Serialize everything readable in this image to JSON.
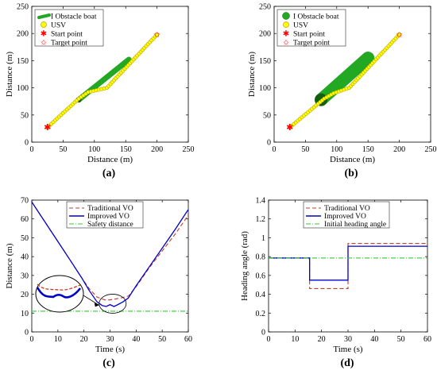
{
  "chart_data": [
    {
      "id": "a",
      "type": "scatter",
      "panel_label": "(a)",
      "xlabel": "Distance (m)",
      "ylabel": "Distance (m)",
      "xlim": [
        0,
        250
      ],
      "ylim": [
        0,
        250
      ],
      "xticks": [
        0,
        50,
        100,
        150,
        200,
        250
      ],
      "yticks": [
        0,
        50,
        100,
        150,
        200,
        250
      ],
      "grid": false,
      "legend_position": "top-left",
      "legend": [
        "I Obstacle boat",
        "USV",
        "Start point",
        "Target point"
      ],
      "colors": {
        "obstacle": "#22a822",
        "obstacle_dark": "#0f5f0f",
        "usv_fill": "#ffff00",
        "usv_edge": "#b8a000",
        "marker": "#ff0000"
      },
      "obstacle": {
        "x_start": 75,
        "y_start": 78,
        "x_end": 155,
        "y_end": 152,
        "width": 7
      },
      "usv_path": {
        "x": [
          25,
          75,
          90,
          120,
          200
        ],
        "y": [
          27,
          80,
          92,
          100,
          198
        ]
      },
      "start_point": {
        "x": 25,
        "y": 27
      },
      "target_point": {
        "x": 200,
        "y": 198
      }
    },
    {
      "id": "b",
      "type": "scatter",
      "panel_label": "(b)",
      "xlabel": "Distance (m)",
      "ylabel": "Distance (m)",
      "xlim": [
        0,
        250
      ],
      "ylim": [
        0,
        250
      ],
      "xticks": [
        0,
        50,
        100,
        150,
        200,
        250
      ],
      "yticks": [
        0,
        50,
        100,
        150,
        200,
        250
      ],
      "grid": false,
      "legend_position": "top-left",
      "legend": [
        "I Obstacle boat",
        "USV",
        "Start point",
        "Target point"
      ],
      "colors": {
        "obstacle": "#22a822",
        "obstacle_dark": "#0f5f0f",
        "usv_fill": "#ffff00",
        "usv_edge": "#b8a000",
        "marker": "#ff0000"
      },
      "obstacle": {
        "x_start": 75,
        "y_start": 78,
        "x_end": 150,
        "y_end": 155,
        "width": 16
      },
      "usv_path": {
        "x": [
          25,
          80,
          95,
          120,
          200
        ],
        "y": [
          27,
          80,
          90,
          100,
          198
        ]
      },
      "start_point": {
        "x": 25,
        "y": 27
      },
      "target_point": {
        "x": 200,
        "y": 198
      }
    },
    {
      "id": "c",
      "type": "line",
      "panel_label": "(c)",
      "xlabel": "Time (s)",
      "ylabel": "Distance (m)",
      "xlim": [
        0,
        60
      ],
      "ylim": [
        0,
        70
      ],
      "xticks": [
        0,
        10,
        20,
        30,
        40,
        50,
        60
      ],
      "yticks": [
        0,
        10,
        20,
        30,
        40,
        50,
        60,
        70
      ],
      "grid": false,
      "legend_position": "top-center",
      "series": [
        {
          "name": "Traditional VO",
          "color": "#c0392b",
          "dash": "5,3",
          "x": [
            0,
            5,
            10,
            15,
            19,
            22,
            25,
            28,
            30,
            32,
            34,
            37,
            40,
            45,
            50,
            55,
            60
          ],
          "y": [
            69,
            58.5,
            48,
            37.5,
            29,
            23,
            18.5,
            17,
            17,
            17.5,
            18,
            19,
            24,
            34,
            43,
            52,
            62
          ]
        },
        {
          "name": "Improved VO",
          "color": "#0000cc",
          "dash": "",
          "x": [
            0,
            5,
            10,
            15,
            19,
            22,
            25,
            27,
            28.5,
            30,
            31.5,
            33,
            35,
            37,
            40,
            45,
            50,
            55,
            60
          ],
          "y": [
            69,
            58.5,
            48,
            37.5,
            29,
            22,
            16,
            14,
            13.5,
            14.5,
            13.5,
            14.5,
            16,
            18,
            24.5,
            34.5,
            44.5,
            54.5,
            65
          ]
        },
        {
          "name": "Safety distance",
          "color": "#33cc33",
          "dash": "6,2,1,2",
          "x": [
            0,
            60
          ],
          "y": [
            11,
            11
          ]
        }
      ],
      "inset_note": "magnified view of minimum-distance region"
    },
    {
      "id": "d",
      "type": "line",
      "panel_label": "(d)",
      "xlabel": "Time (s)",
      "ylabel": "Heading angle  (rad)",
      "xlim": [
        0,
        60
      ],
      "ylim": [
        0,
        1.4
      ],
      "xticks": [
        0,
        10,
        20,
        30,
        40,
        50,
        60
      ],
      "yticks": [
        0,
        0.2,
        0.4,
        0.6,
        0.8,
        1,
        1.2,
        1.4
      ],
      "grid": false,
      "legend_position": "top-center",
      "series": [
        {
          "name": "Traditional VO",
          "color": "#c0392b",
          "dash": "5,3",
          "x": [
            0,
            15.5,
            15.5,
            30,
            30,
            60
          ],
          "y": [
            0.785,
            0.785,
            0.46,
            0.46,
            0.94,
            0.94
          ]
        },
        {
          "name": "Improved VO",
          "color": "#0000cc",
          "dash": "",
          "x": [
            0,
            15.5,
            15.5,
            30,
            30,
            60
          ],
          "y": [
            0.785,
            0.785,
            0.55,
            0.55,
            0.91,
            0.91
          ]
        },
        {
          "name": "Initial heading angle",
          "color": "#33cc33",
          "dash": "6,2,1,2",
          "x": [
            0,
            60
          ],
          "y": [
            0.785,
            0.785
          ]
        }
      ]
    }
  ]
}
